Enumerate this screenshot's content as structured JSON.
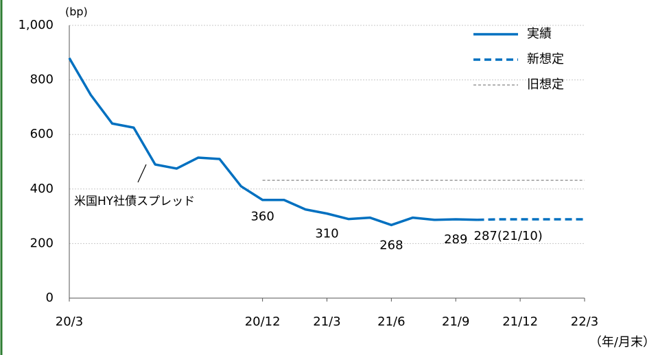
{
  "chart_data": {
    "type": "line",
    "y_axis_label": "(bp)",
    "x_axis_label": "（年/月末）",
    "annotation": "米国HY社債スプレッド",
    "categories": [
      "20/3",
      null,
      null,
      null,
      null,
      null,
      null,
      null,
      null,
      "20/12",
      null,
      null,
      "21/3",
      null,
      null,
      "21/6",
      null,
      null,
      "21/9",
      null,
      null,
      "21/12",
      null,
      null,
      "22/3"
    ],
    "series": [
      {
        "name": "実績",
        "color": "#0070c0",
        "style": "solid",
        "values": [
          880,
          745,
          640,
          625,
          490,
          475,
          515,
          510,
          410,
          360,
          360,
          325,
          310,
          290,
          295,
          268,
          295,
          287,
          289,
          287,
          null,
          null,
          null,
          null,
          null
        ],
        "value_labels": [
          null,
          null,
          null,
          null,
          null,
          null,
          null,
          null,
          null,
          "360",
          null,
          null,
          "310",
          null,
          null,
          "268",
          null,
          null,
          "289",
          "287(21/10)",
          null,
          null,
          null,
          null,
          null
        ],
        "value_label_colors": [
          null,
          null,
          null,
          null,
          null,
          null,
          null,
          null,
          null,
          "#000000",
          null,
          null,
          "#000000",
          null,
          null,
          "#000000",
          null,
          null,
          "#000000",
          "#ff0000",
          null,
          null,
          null,
          null,
          null
        ]
      },
      {
        "name": "新想定",
        "color": "#0070c0",
        "style": "dashed",
        "values": [
          null,
          null,
          null,
          null,
          null,
          null,
          null,
          null,
          null,
          null,
          null,
          null,
          null,
          null,
          null,
          null,
          null,
          null,
          null,
          287,
          289,
          289,
          289,
          289,
          289
        ]
      },
      {
        "name": "旧想定",
        "color": "#999999",
        "style": "dotted",
        "values": [
          null,
          null,
          null,
          null,
          null,
          null,
          null,
          null,
          null,
          432,
          432,
          432,
          432,
          432,
          432,
          432,
          432,
          432,
          432,
          432,
          432,
          432,
          432,
          432,
          432
        ]
      }
    ],
    "ylim": [
      0,
      1000
    ],
    "yticks": [
      0,
      200,
      400,
      600,
      800,
      {
        "value": 1000,
        "label": "1,000"
      }
    ],
    "grid": true,
    "legend": "top-right"
  }
}
